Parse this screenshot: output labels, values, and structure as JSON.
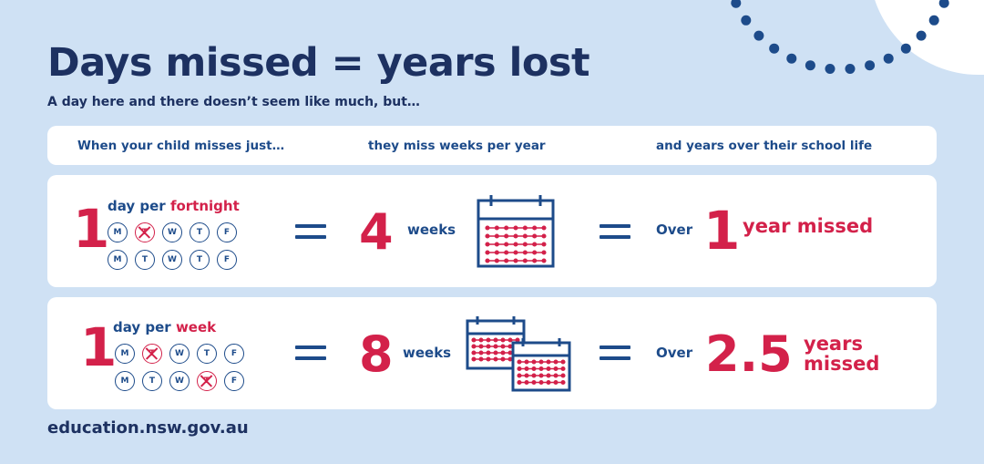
{
  "title": "Days missed = years lost",
  "subtitle": "A day here and there doesn’t seem like much, but…",
  "headers": {
    "col1": "When your child misses just…",
    "col2": "they miss weeks per year",
    "col3": "and years over their school life"
  },
  "rows": [
    {
      "number": "1",
      "label_prefix": "day per ",
      "label_highlight": "fortnight",
      "week1": [
        "M",
        "T",
        "W",
        "T",
        "F"
      ],
      "week2": [
        "M",
        "T",
        "W",
        "T",
        "F"
      ],
      "weeks_value": "4",
      "weeks_label": "weeks",
      "over_label": "Over",
      "years_value": "1",
      "years_label": "year missed"
    },
    {
      "number": "1",
      "label_prefix": "day per ",
      "label_highlight": "week",
      "week1": [
        "M",
        "T",
        "W",
        "T",
        "F"
      ],
      "week2": [
        "M",
        "T",
        "W",
        "T",
        "F"
      ],
      "weeks_value": "8",
      "weeks_label": "weeks",
      "over_label": "Over",
      "years_value": "2.5",
      "years_label_line1": "years",
      "years_label_line2": "missed"
    }
  ],
  "footer": "education.nsw.gov.au",
  "colors": {
    "navy": "#1d3161",
    "blue": "#1d4b8a",
    "red": "#d3214a",
    "background": "#cfe1f4"
  }
}
